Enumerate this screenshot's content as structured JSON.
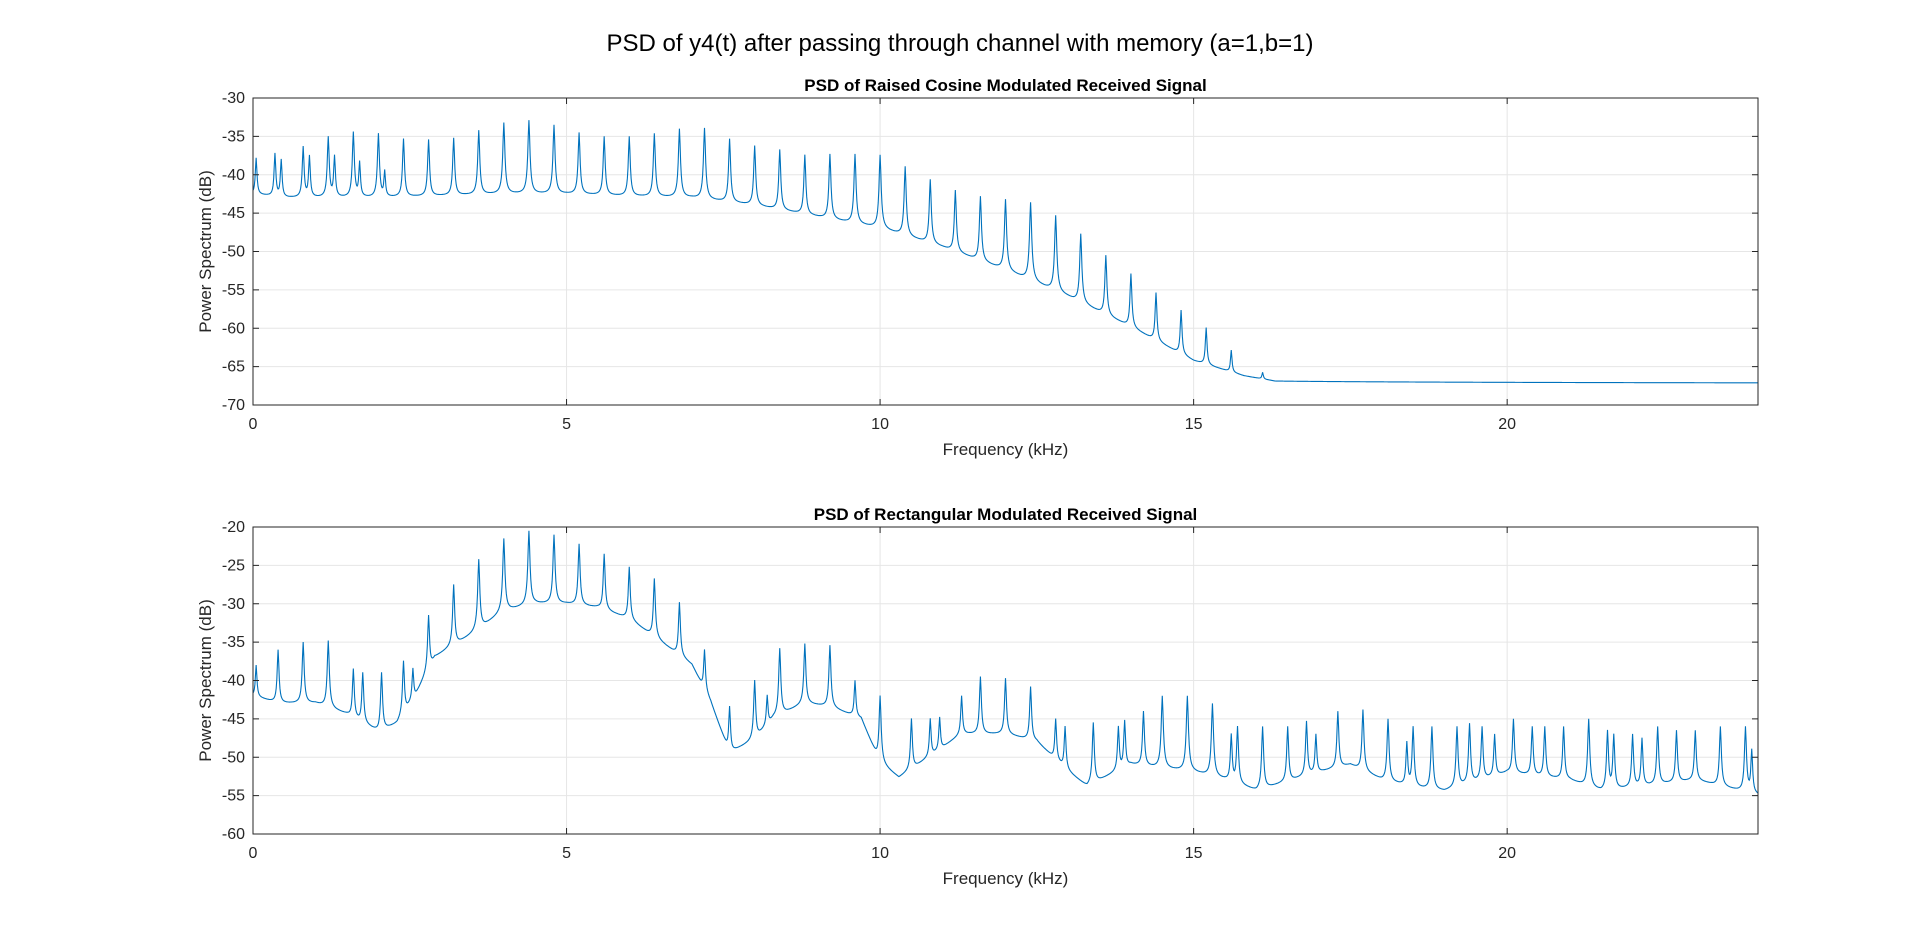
{
  "figure_title": "PSD of y4(t) after passing through channel with memory (a=1,b=1)",
  "colors": {
    "line": "#0072BD",
    "grid": "#e6e6e6",
    "axis": "#262626",
    "background": "#ffffff"
  },
  "chart_data": [
    {
      "type": "line",
      "title": "PSD of Raised Cosine Modulated Received Signal",
      "xlabel": "Frequency (kHz)",
      "ylabel": "Power Spectrum (dB)",
      "xlim": [
        0,
        24
      ],
      "ylim": [
        -70,
        -30
      ],
      "xticks": [
        0,
        5,
        10,
        15,
        20
      ],
      "xtick_labels": [
        "0",
        "5",
        "10",
        "15",
        "20"
      ],
      "yticks": [
        -70,
        -65,
        -60,
        -55,
        -50,
        -45,
        -40,
        -35,
        -30
      ],
      "ytick_labels": [
        "-70",
        "-65",
        "-60",
        "-55",
        "-50",
        "-45",
        "-40",
        "-35",
        "-30"
      ],
      "grid": true,
      "series": [
        {
          "baseline": [
            [
              0,
              -42.5
            ],
            [
              0.5,
              -43
            ],
            [
              2,
              -43
            ],
            [
              4,
              -42.5
            ],
            [
              5,
              -42.5
            ],
            [
              6,
              -42.8
            ],
            [
              7,
              -43
            ],
            [
              8,
              -44
            ],
            [
              9,
              -45.5
            ],
            [
              10,
              -47
            ],
            [
              11,
              -49.5
            ],
            [
              12,
              -52.5
            ],
            [
              13,
              -56
            ],
            [
              14,
              -60
            ],
            [
              15,
              -64.5
            ],
            [
              15.8,
              -66.5
            ],
            [
              16.3,
              -67.2
            ],
            [
              24,
              -67.2
            ]
          ],
          "peaks": [
            [
              0.05,
              -37.8
            ],
            [
              0.35,
              -37.2
            ],
            [
              0.45,
              -38
            ],
            [
              0.8,
              -36.3
            ],
            [
              0.9,
              -37.5
            ],
            [
              1.2,
              -35
            ],
            [
              1.3,
              -37.5
            ],
            [
              1.6,
              -34.4
            ],
            [
              1.7,
              -38.3
            ],
            [
              2.0,
              -34.6
            ],
            [
              2.1,
              -39.5
            ],
            [
              2.4,
              -35.3
            ],
            [
              2.8,
              -35.4
            ],
            [
              3.2,
              -35.2
            ],
            [
              3.6,
              -34.2
            ],
            [
              4.0,
              -33.2
            ],
            [
              4.4,
              -32.9
            ],
            [
              4.8,
              -33.5
            ],
            [
              5.2,
              -34.5
            ],
            [
              5.6,
              -35.0
            ],
            [
              6.0,
              -35.0
            ],
            [
              6.4,
              -34.6
            ],
            [
              6.8,
              -34.0
            ],
            [
              7.2,
              -33.9
            ],
            [
              7.6,
              -35.3
            ],
            [
              8.0,
              -36.2
            ],
            [
              8.4,
              -36.7
            ],
            [
              8.8,
              -37.4
            ],
            [
              9.2,
              -37.3
            ],
            [
              9.6,
              -37.3
            ],
            [
              10.0,
              -37.4
            ],
            [
              10.4,
              -38.9
            ],
            [
              10.8,
              -40.6
            ],
            [
              11.2,
              -42
            ],
            [
              11.6,
              -42.8
            ],
            [
              12.0,
              -43.2
            ],
            [
              12.4,
              -43.6
            ],
            [
              12.8,
              -45.3
            ],
            [
              13.2,
              -47.7
            ],
            [
              13.6,
              -50.5
            ],
            [
              14.0,
              -52.9
            ],
            [
              14.4,
              -55.4
            ],
            [
              14.8,
              -57.7
            ],
            [
              15.2,
              -60
            ],
            [
              15.6,
              -63
            ],
            [
              16.1,
              -66
            ]
          ]
        }
      ]
    },
    {
      "type": "line",
      "title": "PSD of Rectangular Modulated Received Signal",
      "xlabel": "Frequency (kHz)",
      "ylabel": "Power Spectrum (dB)",
      "xlim": [
        0,
        24
      ],
      "ylim": [
        -60,
        -20
      ],
      "xticks": [
        0,
        5,
        10,
        15,
        20
      ],
      "xtick_labels": [
        "0",
        "5",
        "10",
        "15",
        "20"
      ],
      "yticks": [
        -60,
        -55,
        -50,
        -45,
        -40,
        -35,
        -30,
        -25,
        -20
      ],
      "ytick_labels": [
        "-60",
        "-55",
        "-50",
        "-45",
        "-40",
        "-35",
        "-30",
        "-25",
        "-20"
      ],
      "grid": true,
      "series": [
        {
          "baseline": [
            [
              0,
              -42
            ],
            [
              0.4,
              -43
            ],
            [
              1.0,
              -43
            ],
            [
              1.5,
              -44.5
            ],
            [
              2.0,
              -47
            ],
            [
              2.3,
              -46
            ],
            [
              2.6,
              -42
            ],
            [
              2.9,
              -37
            ],
            [
              3.5,
              -34
            ],
            [
              4.0,
              -31
            ],
            [
              4.5,
              -30
            ],
            [
              5.0,
              -30
            ],
            [
              5.5,
              -30.5
            ],
            [
              6.0,
              -32
            ],
            [
              6.5,
              -35
            ],
            [
              7.0,
              -38
            ],
            [
              7.3,
              -43
            ],
            [
              7.6,
              -50
            ],
            [
              8.0,
              -48
            ],
            [
              8.3,
              -45
            ],
            [
              8.8,
              -43
            ],
            [
              9.2,
              -43.5
            ],
            [
              9.7,
              -45
            ],
            [
              10.0,
              -51
            ],
            [
              10.3,
              -53
            ],
            [
              10.8,
              -50
            ],
            [
              11.3,
              -47
            ],
            [
              12.0,
              -47
            ],
            [
              12.5,
              -48
            ],
            [
              13.0,
              -52
            ],
            [
              13.3,
              -54
            ],
            [
              14.0,
              -51
            ],
            [
              15.0,
              -52
            ],
            [
              15.5,
              -53
            ],
            [
              16.0,
              -54.5
            ],
            [
              17.0,
              -52
            ],
            [
              17.5,
              -51
            ],
            [
              18.0,
              -53
            ],
            [
              18.5,
              -54
            ],
            [
              19.0,
              -54.5
            ],
            [
              20.0,
              -52
            ],
            [
              21.0,
              -53
            ],
            [
              21.5,
              -54.5
            ],
            [
              22.0,
              -54
            ],
            [
              23.0,
              -53
            ],
            [
              23.5,
              -54
            ],
            [
              24.0,
              -55
            ]
          ],
          "peaks": [
            [
              0.05,
              -38
            ],
            [
              0.4,
              -36
            ],
            [
              0.8,
              -35
            ],
            [
              1.2,
              -34.8
            ],
            [
              1.6,
              -38.5
            ],
            [
              1.75,
              -39
            ],
            [
              2.05,
              -39
            ],
            [
              2.4,
              -37.5
            ],
            [
              2.55,
              -38.5
            ],
            [
              2.8,
              -31.5
            ],
            [
              3.2,
              -27.5
            ],
            [
              3.6,
              -24.2
            ],
            [
              4.0,
              -21.5
            ],
            [
              4.4,
              -20.5
            ],
            [
              4.8,
              -21
            ],
            [
              5.2,
              -22.2
            ],
            [
              5.6,
              -23.5
            ],
            [
              6.0,
              -25.2
            ],
            [
              6.4,
              -26.7
            ],
            [
              6.8,
              -29.8
            ],
            [
              7.2,
              -36
            ],
            [
              7.6,
              -43.5
            ],
            [
              8.0,
              -40
            ],
            [
              8.2,
              -42
            ],
            [
              8.4,
              -35.8
            ],
            [
              8.8,
              -35.2
            ],
            [
              9.2,
              -35.4
            ],
            [
              9.6,
              -40
            ],
            [
              10.0,
              -42
            ],
            [
              10.5,
              -45
            ],
            [
              10.8,
              -45
            ],
            [
              10.95,
              -44.8
            ],
            [
              11.3,
              -42
            ],
            [
              11.6,
              -39.5
            ],
            [
              12.0,
              -39.7
            ],
            [
              12.4,
              -40.8
            ],
            [
              12.8,
              -45
            ],
            [
              12.95,
              -46
            ],
            [
              13.4,
              -45.5
            ],
            [
              13.8,
              -46
            ],
            [
              13.9,
              -45.2
            ],
            [
              14.2,
              -44
            ],
            [
              14.5,
              -42
            ],
            [
              14.9,
              -42
            ],
            [
              15.3,
              -43
            ],
            [
              15.6,
              -47
            ],
            [
              15.7,
              -46
            ],
            [
              16.1,
              -46
            ],
            [
              16.5,
              -46
            ],
            [
              16.8,
              -45.3
            ],
            [
              16.95,
              -47
            ],
            [
              17.3,
              -44
            ],
            [
              17.7,
              -43.8
            ],
            [
              18.1,
              -45
            ],
            [
              18.4,
              -48
            ],
            [
              18.5,
              -46
            ],
            [
              18.8,
              -46
            ],
            [
              19.2,
              -46
            ],
            [
              19.4,
              -45.6
            ],
            [
              19.6,
              -46
            ],
            [
              19.8,
              -47
            ],
            [
              20.1,
              -45
            ],
            [
              20.4,
              -46
            ],
            [
              20.6,
              -46
            ],
            [
              20.9,
              -46
            ],
            [
              21.3,
              -45
            ],
            [
              21.6,
              -46.5
            ],
            [
              21.7,
              -47
            ],
            [
              22.0,
              -47
            ],
            [
              22.15,
              -47.5
            ],
            [
              22.4,
              -46
            ],
            [
              22.7,
              -46.5
            ],
            [
              23.0,
              -46.5
            ],
            [
              23.4,
              -46
            ],
            [
              23.8,
              -46
            ],
            [
              23.9,
              -49
            ]
          ]
        }
      ]
    }
  ]
}
